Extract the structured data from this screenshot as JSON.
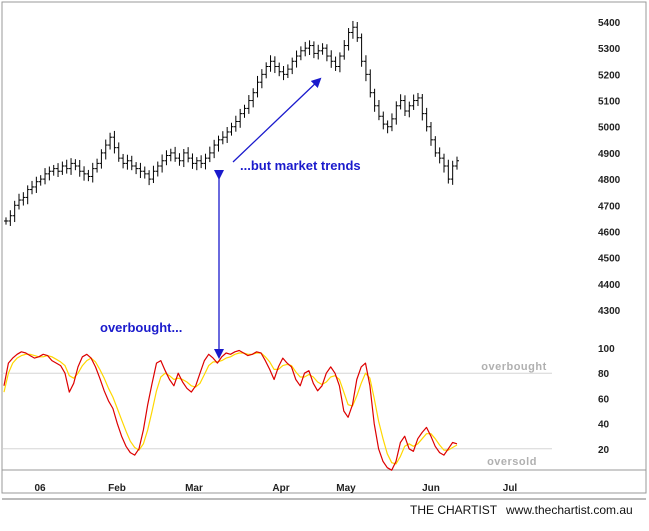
{
  "chart_data": [
    {
      "type": "candlestick",
      "title": "",
      "price_ticks": [
        4300,
        4400,
        4500,
        4600,
        4700,
        4800,
        4900,
        5000,
        5100,
        5200,
        5300,
        5400
      ],
      "ylim": [
        4280,
        5440
      ],
      "x_labels": [
        "06",
        "Feb",
        "Mar",
        "Apr",
        "May",
        "Jun",
        "Jul"
      ],
      "closes_approx": [
        4640,
        4660,
        4700,
        4720,
        4730,
        4760,
        4770,
        4790,
        4800,
        4820,
        4830,
        4840,
        4830,
        4850,
        4840,
        4860,
        4850,
        4830,
        4820,
        4810,
        4840,
        4860,
        4900,
        4930,
        4960,
        4920,
        4880,
        4860,
        4870,
        4850,
        4840,
        4830,
        4820,
        4800,
        4830,
        4850,
        4870,
        4890,
        4900,
        4880,
        4870,
        4900,
        4880,
        4860,
        4870,
        4860,
        4880,
        4900,
        4930,
        4950,
        4960,
        4980,
        5000,
        5020,
        5050,
        5070,
        5100,
        5130,
        5170,
        5200,
        5230,
        5250,
        5230,
        5210,
        5200,
        5220,
        5250,
        5270,
        5290,
        5300,
        5310,
        5280,
        5290,
        5300,
        5270,
        5250,
        5230,
        5270,
        5310,
        5360,
        5380,
        5340,
        5250,
        5200,
        5130,
        5080,
        5040,
        5010,
        5000,
        5030,
        5080,
        5100,
        5060,
        5080,
        5100,
        5110,
        5050,
        5000,
        4950,
        4900,
        4880,
        4850,
        4800,
        4850,
        4870
      ]
    },
    {
      "type": "line",
      "ylim": [
        0,
        100
      ],
      "y_ticks": [
        20,
        40,
        60,
        80,
        100
      ],
      "series": [
        {
          "color": "#dd0000",
          "values": [
            70,
            88,
            92,
            95,
            97,
            96,
            94,
            92,
            93,
            95,
            94,
            90,
            88,
            86,
            80,
            65,
            72,
            85,
            93,
            95,
            92,
            85,
            76,
            66,
            58,
            52,
            40,
            30,
            22,
            17,
            15,
            20,
            35,
            55,
            72,
            88,
            90,
            82,
            75,
            70,
            80,
            73,
            68,
            65,
            70,
            80,
            90,
            95,
            92,
            88,
            93,
            96,
            95,
            97,
            98,
            96,
            94,
            95,
            97,
            96,
            90,
            83,
            75,
            85,
            92,
            88,
            85,
            75,
            70,
            80,
            82,
            72,
            66,
            70,
            80,
            85,
            80,
            70,
            50,
            45,
            55,
            75,
            85,
            88,
            70,
            40,
            20,
            10,
            5,
            3,
            10,
            25,
            30,
            20,
            18,
            28,
            33,
            37,
            30,
            22,
            17,
            15,
            20,
            25,
            24
          ]
        },
        {
          "color": "#ffd700",
          "values": [
            65,
            80,
            88,
            92,
            94,
            95,
            95,
            94,
            93,
            93,
            94,
            93,
            91,
            89,
            86,
            78,
            76,
            80,
            86,
            90,
            92,
            89,
            83,
            76,
            68,
            61,
            52,
            43,
            34,
            26,
            21,
            19,
            24,
            35,
            50,
            66,
            77,
            80,
            78,
            75,
            76,
            75,
            73,
            70,
            69,
            72,
            79,
            86,
            89,
            89,
            90,
            92,
            93,
            95,
            96,
            96,
            95,
            95,
            96,
            96,
            93,
            89,
            83,
            83,
            86,
            87,
            86,
            81,
            77,
            77,
            79,
            77,
            73,
            71,
            73,
            77,
            78,
            75,
            65,
            55,
            54,
            62,
            72,
            80,
            76,
            60,
            42,
            28,
            16,
            9,
            8,
            14,
            22,
            24,
            22,
            24,
            28,
            32,
            32,
            28,
            23,
            19,
            19,
            21,
            23
          ]
        }
      ],
      "zones": [
        {
          "label": "overbought",
          "level": 80
        },
        {
          "label": "oversold",
          "level": 20
        }
      ]
    }
  ],
  "annotations": {
    "top_text": "...but market trends",
    "bottom_text": "overbought..."
  },
  "footer": {
    "left": "THE CHARTIST",
    "right": "www.thechartist.com.au"
  },
  "colors": {
    "annotation": "#1a1acc",
    "price": "#000000",
    "border": "#999999"
  }
}
